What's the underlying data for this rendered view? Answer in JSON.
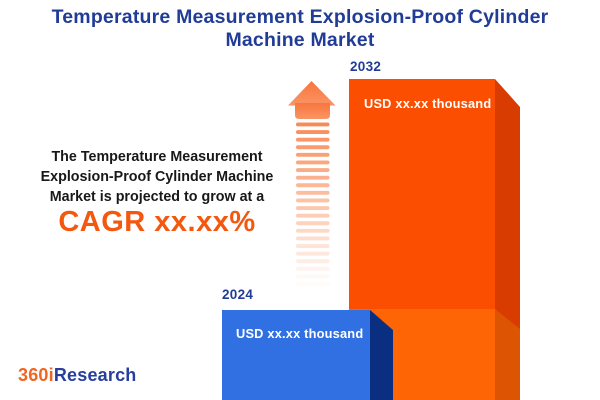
{
  "title": {
    "full": "Temperature Measurement Explosion-Proof Cylinder Machine Market",
    "line1": "Temperature Measurement Explosion-Proof Cylinder",
    "line2": "Machine Market"
  },
  "description": {
    "line1": "The Temperature Measurement",
    "line2": "Explosion-Proof Cylinder Machine",
    "line3": "Market is projected to grow at a",
    "cagr": "CAGR xx.xx%"
  },
  "chart_data": {
    "type": "bar",
    "title": "Temperature Measurement Explosion-Proof Cylinder Machine Market",
    "categories": [
      "2024",
      "2032"
    ],
    "values": [
      null,
      null
    ],
    "value_labels": [
      "USD xx.xx thousand",
      "USD xx.xx thousand"
    ],
    "unit": "USD thousand",
    "annotation": "The Temperature Measurement Explosion-Proof Cylinder Machine Market is projected to grow at a CAGR xx.xx%",
    "layout": {
      "orientation": "vertical",
      "grid": false,
      "legend": false,
      "value_axis_visible": false,
      "growth_arrow": true
    }
  },
  "logo": {
    "prefix": "360i",
    "suffix": "Research"
  },
  "colors": {
    "title": "#203C96",
    "description_text": "#181818",
    "cagr": "#F4570E",
    "year_label": "#203C96",
    "value_label": "#FFFFFF",
    "bar_2032_front": "#FC4E00",
    "bar_2032_front_lower": "#FD6505",
    "bar_2032_side": "#D83C00",
    "bar_2032_side_lower": "#DD5502",
    "bar_2024_front": "#3070E3",
    "bar_2024_side": "#0B2F80",
    "arrow": "#F9854E",
    "arrow_head_top": "#F8763B",
    "arrow_head_bottom": "#FA9466",
    "logo_orange": "#F16522",
    "logo_blue": "#263F9C",
    "background": "#FFFFFF"
  }
}
